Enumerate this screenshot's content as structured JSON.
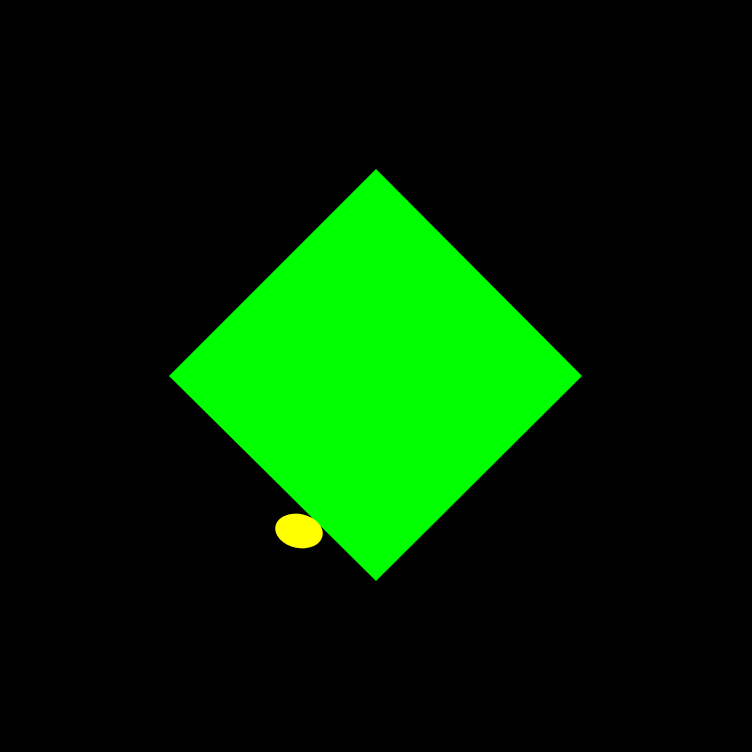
{
  "scene": {
    "background_color": "#000000",
    "player": {
      "shape": "diamond",
      "color": "#00ff00"
    },
    "target": {
      "shape": "ellipse",
      "color": "#ffff00"
    }
  }
}
